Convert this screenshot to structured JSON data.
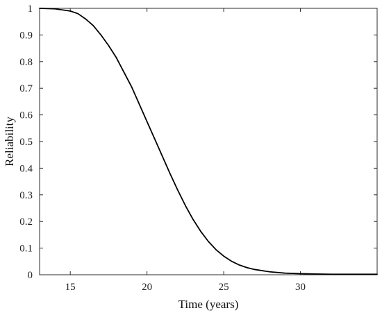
{
  "chart_data": {
    "type": "line",
    "title": "",
    "xlabel": "Time (years)",
    "ylabel": "Reliability",
    "xlim": [
      13,
      35
    ],
    "ylim": [
      0,
      1
    ],
    "xticks": [
      15,
      20,
      25,
      30
    ],
    "yticks": [
      0,
      0.1,
      0.2,
      0.3,
      0.4,
      0.5,
      0.6,
      0.7,
      0.8,
      0.9,
      1
    ],
    "grid": false,
    "legend": "none",
    "line_color": "#000000",
    "series": [
      {
        "x": [
          13,
          14,
          15,
          15.5,
          16,
          16.5,
          17,
          17.5,
          18,
          18.5,
          19,
          19.5,
          20,
          20.5,
          21,
          21.5,
          22,
          22.5,
          23,
          23.5,
          24,
          24.5,
          25,
          25.5,
          26,
          26.5,
          27,
          28,
          29,
          30,
          31,
          32,
          33,
          34,
          35
        ],
        "values": [
          1.0,
          0.998,
          0.99,
          0.98,
          0.96,
          0.935,
          0.9,
          0.86,
          0.815,
          0.76,
          0.705,
          0.64,
          0.575,
          0.51,
          0.445,
          0.38,
          0.318,
          0.26,
          0.208,
          0.163,
          0.125,
          0.094,
          0.07,
          0.051,
          0.037,
          0.027,
          0.02,
          0.011,
          0.006,
          0.004,
          0.003,
          0.002,
          0.002,
          0.002,
          0.002
        ]
      }
    ]
  }
}
